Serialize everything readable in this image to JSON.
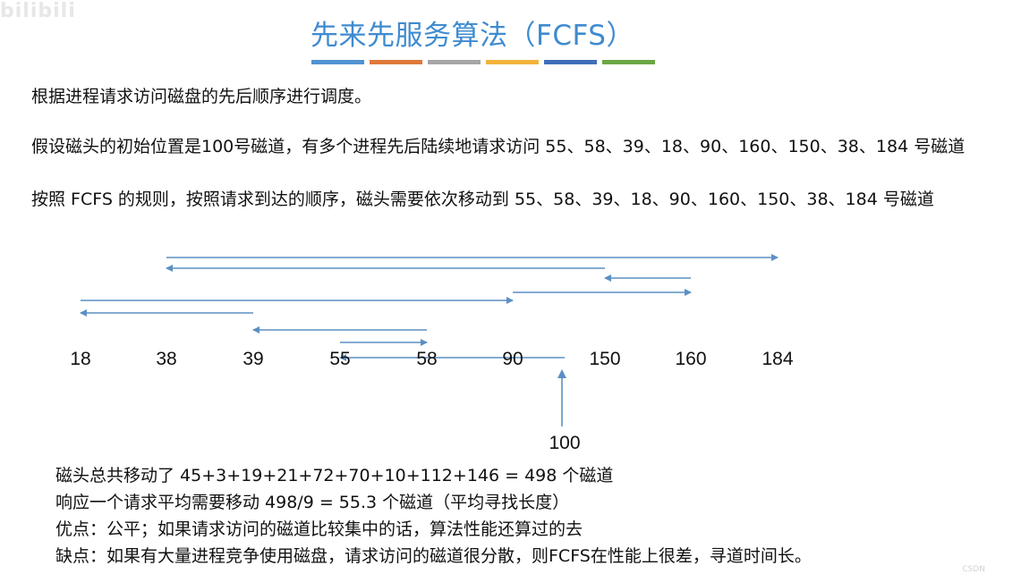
{
  "watermark": "bilibili",
  "title": "先来先服务算法（FCFS）",
  "accent_colors": [
    "#4f93d2",
    "#e0783a",
    "#a6a6a6",
    "#f2b33b",
    "#3f6fb9",
    "#6da647"
  ],
  "intro": "根据进程请求访问磁盘的先后顺序进行调度。",
  "paragraph_1": "假设磁头的初始位置是100号磁道，有多个进程先后陆续地请求访问 55、58、39、18、90、160、150、38、184 号磁道",
  "paragraph_2": "按照 FCFS 的规则，按照请求到达的顺序，磁头需要依次移动到 55、58、39、18、90、160、150、38、184 号磁道",
  "diagram_data": {
    "start_track": 100,
    "start_label": "100",
    "track_labels": [
      "18",
      "38",
      "39",
      "55",
      "58",
      "90",
      "150",
      "160",
      "184"
    ],
    "arrow_color": "#5b8fc4",
    "moves": [
      {
        "from": 100,
        "to": 55
      },
      {
        "from": 55,
        "to": 58
      },
      {
        "from": 58,
        "to": 39
      },
      {
        "from": 39,
        "to": 18
      },
      {
        "from": 18,
        "to": 90
      },
      {
        "from": 90,
        "to": 160
      },
      {
        "from": 160,
        "to": 150
      },
      {
        "from": 150,
        "to": 38
      },
      {
        "from": 38,
        "to": 184
      }
    ]
  },
  "summary": {
    "total": "磁头总共移动了  45+3+19+21+72+70+10+112+146 = 498  个磁道",
    "average": "响应一个请求平均需要移动 498/9 = 55.3 个磁道（平均寻找长度）",
    "pros": "优点：公平；如果请求访问的磁道比较集中的话，算法性能还算过的去",
    "cons": "缺点：如果有大量进程竞争使用磁盘，请求访问的磁道很分散，则FCFS在性能上很差，寻道时间长。"
  },
  "corner_mark": "CSDN"
}
